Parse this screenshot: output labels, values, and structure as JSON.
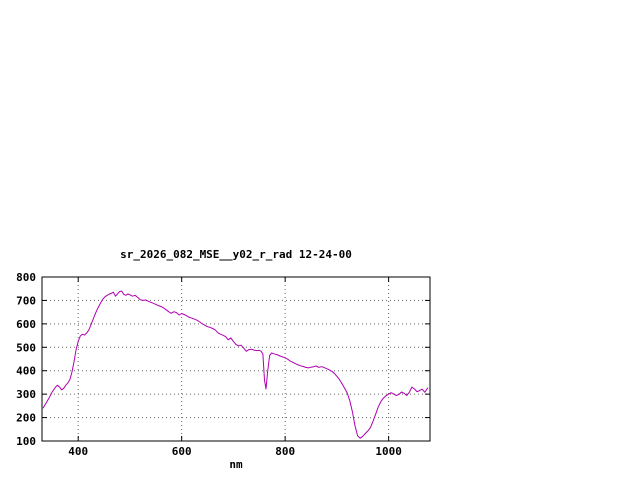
{
  "page": {
    "background": "#ffffff"
  },
  "chart_data": {
    "type": "line",
    "title": "sr_2026_082_MSE__y02_r_rad 12-24-00",
    "xlabel": "nm",
    "ylabel": "",
    "xlim": [
      330,
      1080
    ],
    "ylim": [
      100,
      800
    ],
    "xticks": [
      400,
      600,
      800,
      1000
    ],
    "yticks": [
      100,
      200,
      300,
      400,
      500,
      600,
      700,
      800
    ],
    "grid": true,
    "grid_color": "#666666",
    "line_color": "#b000b0",
    "axis_color": "#000000",
    "legend": "none",
    "series": [
      {
        "name": "sr_2026_082_MSE__y02_r_rad",
        "x": [
          332,
          338,
          344,
          350,
          356,
          360,
          364,
          368,
          372,
          376,
          380,
          384,
          388,
          392,
          396,
          400,
          404,
          408,
          412,
          416,
          420,
          424,
          428,
          432,
          436,
          440,
          444,
          448,
          452,
          456,
          460,
          464,
          468,
          472,
          476,
          480,
          484,
          488,
          492,
          496,
          500,
          505,
          510,
          515,
          520,
          525,
          530,
          535,
          540,
          545,
          550,
          555,
          560,
          565,
          570,
          575,
          580,
          585,
          590,
          595,
          600,
          605,
          610,
          615,
          620,
          625,
          630,
          635,
          640,
          645,
          650,
          655,
          660,
          665,
          670,
          675,
          680,
          685,
          690,
          695,
          700,
          705,
          710,
          715,
          720,
          725,
          730,
          735,
          740,
          745,
          750,
          754,
          757,
          760,
          763,
          766,
          770,
          774,
          778,
          782,
          786,
          790,
          795,
          800,
          805,
          810,
          815,
          820,
          825,
          830,
          835,
          840,
          845,
          850,
          855,
          860,
          865,
          870,
          875,
          880,
          885,
          890,
          895,
          900,
          905,
          910,
          915,
          920,
          925,
          930,
          935,
          940,
          945,
          950,
          955,
          960,
          965,
          970,
          975,
          980,
          985,
          990,
          995,
          1000,
          1005,
          1010,
          1015,
          1020,
          1025,
          1030,
          1035,
          1040,
          1045,
          1050,
          1055,
          1060,
          1065,
          1070,
          1076
        ],
        "y": [
          240,
          262,
          285,
          310,
          330,
          338,
          330,
          318,
          325,
          338,
          348,
          362,
          395,
          440,
          490,
          525,
          548,
          556,
          552,
          560,
          572,
          592,
          615,
          638,
          658,
          676,
          692,
          706,
          716,
          722,
          727,
          730,
          735,
          718,
          728,
          738,
          740,
          726,
          722,
          728,
          724,
          718,
          722,
          713,
          703,
          700,
          702,
          697,
          692,
          688,
          683,
          678,
          674,
          668,
          660,
          652,
          645,
          652,
          648,
          638,
          644,
          640,
          634,
          628,
          624,
          620,
          615,
          608,
          600,
          594,
          588,
          585,
          580,
          574,
          562,
          556,
          551,
          545,
          532,
          540,
          525,
          512,
          506,
          509,
          496,
          483,
          490,
          492,
          488,
          486,
          487,
          482,
          470,
          360,
          322,
          395,
          465,
          476,
          472,
          470,
          467,
          463,
          459,
          455,
          449,
          441,
          436,
          430,
          425,
          421,
          418,
          414,
          412,
          415,
          417,
          420,
          414,
          417,
          414,
          409,
          404,
          398,
          389,
          376,
          362,
          344,
          325,
          305,
          272,
          225,
          165,
          122,
          112,
          120,
          132,
          143,
          158,
          185,
          215,
          246,
          268,
          283,
          293,
          300,
          306,
          300,
          294,
          299,
          309,
          304,
          294,
          308,
          330,
          322,
          310,
          316,
          321,
          308,
          328
        ]
      }
    ]
  }
}
